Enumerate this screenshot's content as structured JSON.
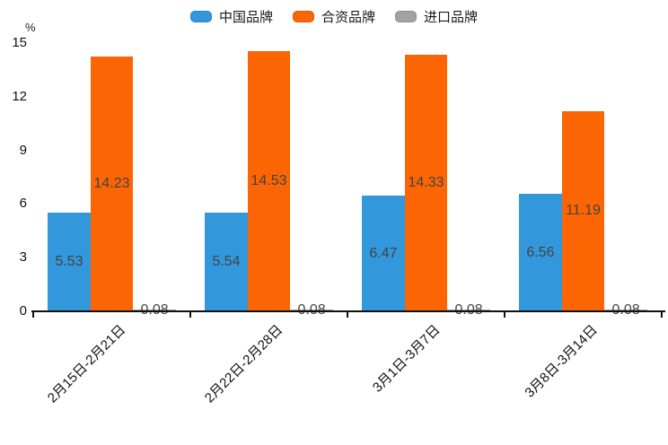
{
  "chart_data": {
    "type": "bar",
    "percent_label": "%",
    "categories": [
      "2月15日-2月21日",
      "2月22日-2月28日",
      "3月1日-3月7日",
      "3月8日-3月14日"
    ],
    "series": [
      {
        "name": "中国品牌",
        "color": "#3398db",
        "edge_color": "#2a85c4",
        "values": [
          5.53,
          5.54,
          6.47,
          6.56
        ]
      },
      {
        "name": "合资品牌",
        "color": "#fb6503",
        "edge_color": "#df5a02",
        "values": [
          14.23,
          14.53,
          14.33,
          11.19
        ]
      },
      {
        "name": "进口品牌",
        "color": "#a2a2a2",
        "edge_color": "#8c8c8c",
        "values": [
          0.08,
          0.08,
          0.08,
          0.08
        ]
      }
    ],
    "value_labels": [
      [
        "5.53",
        "5.54",
        "6.47",
        "6.56"
      ],
      [
        "14.23",
        "14.53",
        "14.33",
        "11.19"
      ],
      [
        "0.08",
        "0.08",
        "0.08",
        "0.08"
      ]
    ],
    "ytick_labels": [
      "0",
      "3",
      "6",
      "9",
      "12",
      "15"
    ],
    "yticks": [
      0,
      3,
      6,
      9,
      12,
      15
    ],
    "ylim": [
      0,
      15
    ],
    "grid": false,
    "legend_position": "top",
    "colors": {
      "axis": "#111111",
      "value_label": "#434343",
      "background": "#ffffff"
    }
  }
}
